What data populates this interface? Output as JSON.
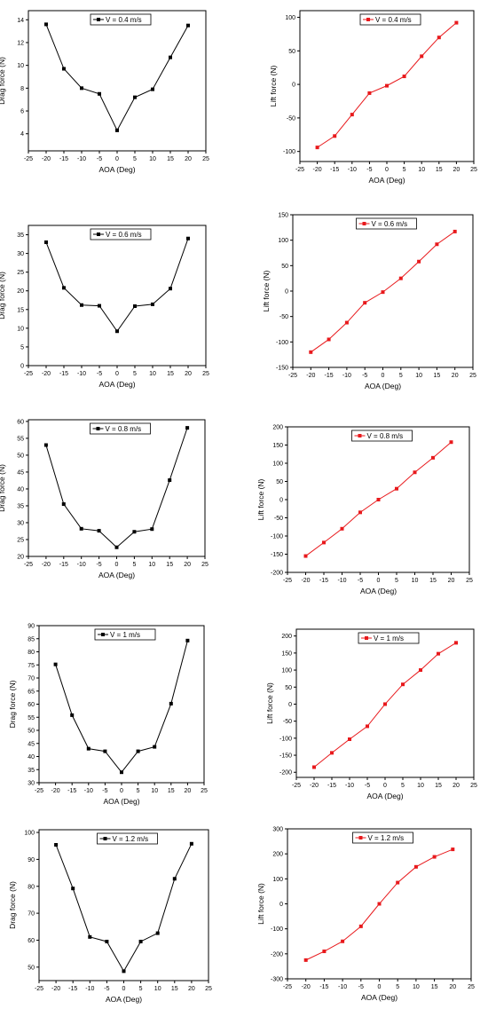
{
  "chart_data": [
    {
      "type": "line",
      "xlabel": "AOA (Deg)",
      "ylabel": "Drag force (N)",
      "xlim": [
        -25,
        25
      ],
      "ylim": [
        2.5,
        14.8
      ],
      "xticks": [
        -25,
        -20,
        -15,
        -10,
        -5,
        0,
        5,
        10,
        15,
        20,
        25
      ],
      "yticks": [
        4,
        6,
        8,
        10,
        12,
        14
      ],
      "legend_position": "top-center",
      "color": "#000000",
      "series": [
        {
          "name": "V = 0.4 m/s",
          "x": [
            -20,
            -15,
            -10,
            -5,
            0,
            5,
            10,
            15,
            20
          ],
          "y": [
            13.6,
            9.7,
            8.0,
            7.5,
            4.3,
            7.2,
            7.9,
            10.7,
            13.5
          ]
        }
      ]
    },
    {
      "type": "line",
      "xlabel": "AOA (Deg)",
      "ylabel": "Lift force (N)",
      "xlim": [
        -25,
        25
      ],
      "ylim": [
        -115,
        110
      ],
      "xticks": [
        -25,
        -20,
        -15,
        -10,
        -5,
        0,
        5,
        10,
        15,
        20,
        25
      ],
      "yticks": [
        -100,
        -50,
        0,
        50,
        100
      ],
      "legend_position": "top-center",
      "color": "#e8191c",
      "series": [
        {
          "name": "V =  0.4 m/s",
          "x": [
            -20,
            -15,
            -10,
            -5,
            0,
            5,
            10,
            15,
            20
          ],
          "y": [
            -94,
            -77,
            -45,
            -13,
            -2,
            12,
            42,
            70,
            92
          ]
        }
      ]
    },
    {
      "type": "line",
      "xlabel": "AOA (Deg)",
      "ylabel": "Drag force (N)",
      "xlim": [
        -25,
        25
      ],
      "ylim": [
        0,
        37.5
      ],
      "xticks": [
        -25,
        -20,
        -15,
        -10,
        -5,
        0,
        5,
        10,
        15,
        20,
        25
      ],
      "yticks": [
        0,
        5,
        10,
        15,
        20,
        25,
        30,
        35
      ],
      "legend_position": "top-center",
      "color": "#000000",
      "series": [
        {
          "name": "V = 0.6 m/s",
          "x": [
            -20,
            -15,
            -10,
            -5,
            0,
            5,
            10,
            15,
            20
          ],
          "y": [
            33,
            20.8,
            16.2,
            16.0,
            9.2,
            15.9,
            16.4,
            20.6,
            34
          ]
        }
      ]
    },
    {
      "type": "line",
      "xlabel": "AOA (Deg)",
      "ylabel": "Lift force (N)",
      "xlim": [
        -25,
        25
      ],
      "ylim": [
        -150,
        150
      ],
      "xticks": [
        -25,
        -20,
        -15,
        -10,
        -5,
        0,
        5,
        10,
        15,
        20,
        25
      ],
      "yticks": [
        -150,
        -100,
        -50,
        0,
        50,
        100,
        150
      ],
      "legend_position": "top-center",
      "color": "#e8191c",
      "series": [
        {
          "name": "V =  0.6 m/s",
          "x": [
            -20,
            -15,
            -10,
            -5,
            0,
            5,
            10,
            15,
            20
          ],
          "y": [
            -120,
            -95,
            -62,
            -23,
            -2,
            25,
            58,
            92,
            117
          ]
        }
      ]
    },
    {
      "type": "line",
      "xlabel": "AOA (Deg)",
      "ylabel": "Drag force (N)",
      "xlim": [
        -25,
        25
      ],
      "ylim": [
        20,
        60.5
      ],
      "xticks": [
        -25,
        -20,
        -15,
        -10,
        -5,
        0,
        5,
        10,
        15,
        20,
        25
      ],
      "yticks": [
        20,
        25,
        30,
        35,
        40,
        45,
        50,
        55,
        60
      ],
      "legend_position": "top-center",
      "color": "#000000",
      "series": [
        {
          "name": "V = 0.8 m/s",
          "x": [
            -20,
            -15,
            -10,
            -5,
            0,
            5,
            10,
            15,
            20
          ],
          "y": [
            53,
            35.5,
            28.2,
            27.6,
            22.7,
            27.3,
            28.1,
            42.6,
            58.1
          ]
        }
      ]
    },
    {
      "type": "line",
      "xlabel": "AOA (Deg)",
      "ylabel": "Lift force (N)",
      "xlim": [
        -25,
        25
      ],
      "ylim": [
        -200,
        200
      ],
      "xticks": [
        -25,
        -20,
        -15,
        -10,
        -5,
        0,
        5,
        10,
        15,
        20,
        25
      ],
      "yticks": [
        -200,
        -150,
        -100,
        -50,
        0,
        50,
        100,
        150,
        200
      ],
      "legend_position": "top-center",
      "color": "#e8191c",
      "series": [
        {
          "name": "V = 0.8 m/s",
          "x": [
            -20,
            -15,
            -10,
            -5,
            0,
            5,
            10,
            15,
            20
          ],
          "y": [
            -155,
            -118,
            -80,
            -35,
            0,
            30,
            75,
            115,
            158
          ]
        }
      ]
    },
    {
      "type": "line",
      "xlabel": "AOA (Deg)",
      "ylabel": "Drag force (N)",
      "xlim": [
        -25,
        25
      ],
      "ylim": [
        30,
        90
      ],
      "xticks": [
        -25,
        -20,
        -15,
        -10,
        -5,
        0,
        5,
        10,
        15,
        20,
        25
      ],
      "yticks": [
        30,
        35,
        40,
        45,
        50,
        55,
        60,
        65,
        70,
        75,
        80,
        85,
        90
      ],
      "legend_position": "top-center",
      "color": "#000000",
      "series": [
        {
          "name": "V = 1 m/s",
          "x": [
            -20,
            -15,
            -10,
            -5,
            0,
            5,
            10,
            15,
            20
          ],
          "y": [
            75.2,
            55.8,
            43.0,
            42.0,
            34.0,
            42.0,
            43.7,
            60.2,
            84.3
          ]
        }
      ]
    },
    {
      "type": "line",
      "xlabel": "AOA (Deg)",
      "ylabel": "Lift force (N)",
      "xlim": [
        -25,
        25
      ],
      "ylim": [
        -215,
        220
      ],
      "xticks": [
        -25,
        -20,
        -15,
        -10,
        -5,
        0,
        5,
        10,
        15,
        20,
        25
      ],
      "yticks": [
        -200,
        -150,
        -100,
        -50,
        0,
        50,
        100,
        150,
        200
      ],
      "legend_position": "top-center",
      "color": "#e8191c",
      "series": [
        {
          "name": "V = 1 m/s",
          "x": [
            -20,
            -15,
            -10,
            -5,
            0,
            5,
            10,
            15,
            20
          ],
          "y": [
            -185,
            -143,
            -103,
            -65,
            0,
            58,
            100,
            148,
            180
          ]
        }
      ]
    },
    {
      "type": "line",
      "xlabel": "AOA (Deg)",
      "ylabel": "Drag force (N)",
      "xlim": [
        -25,
        25
      ],
      "ylim": [
        45,
        101
      ],
      "xticks": [
        -25,
        -20,
        -15,
        -10,
        -5,
        0,
        5,
        10,
        15,
        20,
        25
      ],
      "yticks": [
        50,
        60,
        70,
        80,
        90,
        100
      ],
      "legend_position": "top-center",
      "color": "#000000",
      "series": [
        {
          "name": "V = 1.2 m/s",
          "x": [
            -20,
            -15,
            -10,
            -5,
            0,
            5,
            10,
            15,
            20
          ],
          "y": [
            95.4,
            79.2,
            61.2,
            59.5,
            48.5,
            59.5,
            62.6,
            82.8,
            95.8
          ]
        }
      ]
    },
    {
      "type": "line",
      "xlabel": "AOA (Deg)",
      "ylabel": "Lift force (N)",
      "xlim": [
        -25,
        25
      ],
      "ylim": [
        -300,
        300
      ],
      "xticks": [
        -25,
        -20,
        -15,
        -10,
        -5,
        0,
        5,
        10,
        15,
        20,
        25
      ],
      "yticks": [
        -300,
        -200,
        -100,
        0,
        100,
        200,
        300
      ],
      "legend_position": "top-center",
      "color": "#e8191c",
      "series": [
        {
          "name": "V = 1.2 m/s",
          "x": [
            -20,
            -15,
            -10,
            -5,
            0,
            5,
            10,
            15,
            20
          ],
          "y": [
            -225,
            -190,
            -150,
            -90,
            0,
            85,
            148,
            188,
            218
          ]
        }
      ]
    }
  ]
}
